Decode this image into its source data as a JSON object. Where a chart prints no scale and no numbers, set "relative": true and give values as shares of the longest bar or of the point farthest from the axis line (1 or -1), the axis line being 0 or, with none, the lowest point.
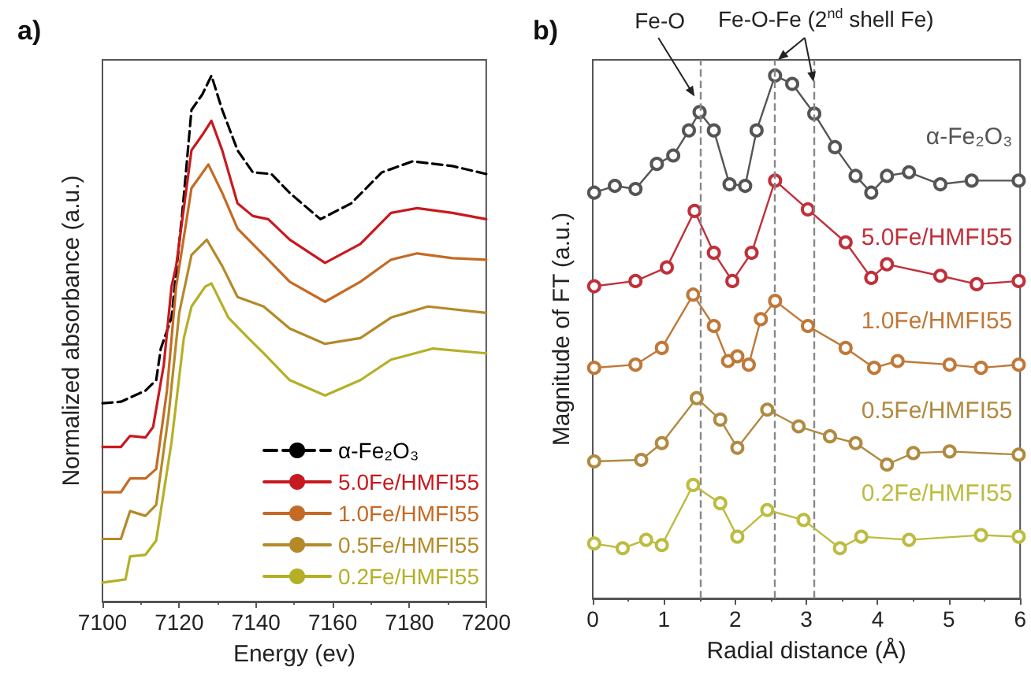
{
  "chart_data": [
    {
      "type": "line",
      "title": "a)",
      "xlabel": "Energy (ev)",
      "ylabel": "Normalized absorbance (a.u.)",
      "relative": true,
      "xlim": [
        7100,
        7200
      ],
      "xticks": [
        7100,
        7120,
        7140,
        7160,
        7180,
        7200
      ],
      "grid": false,
      "legend": "bottom right",
      "marker": "none",
      "series": [
        {
          "name": "α-Fe₂O₃",
          "color": "#000000",
          "line_style": "dashed",
          "x": [
            7100,
            7104.8,
            7111.2,
            7114,
            7115.2,
            7118,
            7120.8,
            7123.2,
            7126,
            7128.4,
            7131.2,
            7135.2,
            7139.2,
            7144,
            7148.8,
            7156.8,
            7164.8,
            7172.8,
            7180.8,
            7191.2,
            7200
          ],
          "values": [
            0.377,
            0.38,
            0.401,
            0.421,
            0.481,
            0.54,
            0.739,
            0.935,
            0.964,
            1.0,
            0.935,
            0.858,
            0.816,
            0.813,
            0.777,
            0.727,
            0.757,
            0.816,
            0.837,
            0.828,
            0.813
          ]
        },
        {
          "name": "5.0Fe/HMFI55",
          "color": "#c8191e",
          "x": [
            7100,
            7104.8,
            7107.2,
            7111.2,
            7113.2,
            7116,
            7118,
            7119.2,
            7123.2,
            7126,
            7128.4,
            7131.2,
            7135.2,
            7139.2,
            7143.2,
            7148.8,
            7158,
            7167.2,
            7175.2,
            7182,
            7191.2,
            7200
          ],
          "values": [
            0.294,
            0.294,
            0.315,
            0.312,
            0.332,
            0.451,
            0.599,
            0.638,
            0.858,
            0.887,
            0.914,
            0.858,
            0.757,
            0.733,
            0.727,
            0.688,
            0.644,
            0.68,
            0.739,
            0.748,
            0.739,
            0.727
          ]
        },
        {
          "name": "1.0Fe/HMFI55",
          "color": "#c46a24",
          "x": [
            7100,
            7104.8,
            7107.2,
            7111.2,
            7114,
            7116.8,
            7119.2,
            7123.2,
            7127.6,
            7131.2,
            7135.2,
            7142,
            7148.8,
            7158,
            7167.2,
            7175.2,
            7182,
            7191.2,
            7200
          ],
          "values": [
            0.208,
            0.208,
            0.234,
            0.234,
            0.252,
            0.401,
            0.599,
            0.786,
            0.831,
            0.777,
            0.709,
            0.659,
            0.608,
            0.57,
            0.608,
            0.65,
            0.662,
            0.653,
            0.65
          ]
        },
        {
          "name": "0.5Fe/HMFI55",
          "color": "#b48a28",
          "x": [
            7100,
            7104.8,
            7107.2,
            7111.2,
            7114,
            7117.2,
            7120,
            7123.2,
            7127.2,
            7131.2,
            7135.2,
            7142,
            7148.8,
            7158,
            7167.2,
            7175.2,
            7184.8,
            7200
          ],
          "values": [
            0.119,
            0.119,
            0.172,
            0.163,
            0.184,
            0.353,
            0.549,
            0.659,
            0.688,
            0.638,
            0.579,
            0.561,
            0.519,
            0.49,
            0.501,
            0.54,
            0.561,
            0.549
          ]
        },
        {
          "name": "0.2Fe/HMFI55",
          "color": "#b4b026",
          "x": [
            7100,
            7106,
            7107.2,
            7111.2,
            7114,
            7118,
            7121.2,
            7123.2,
            7126.8,
            7128.4,
            7132.8,
            7138,
            7142,
            7148.8,
            7158,
            7167.2,
            7175.2,
            7186,
            7200
          ],
          "values": [
            0.036,
            0.042,
            0.086,
            0.089,
            0.116,
            0.303,
            0.501,
            0.561,
            0.599,
            0.605,
            0.54,
            0.501,
            0.472,
            0.421,
            0.392,
            0.421,
            0.46,
            0.481,
            0.472
          ]
        }
      ]
    },
    {
      "type": "line",
      "title": "b)",
      "xlabel": "Radial distance (Å)",
      "ylabel": "Magnitude of FT (a.u.)",
      "relative": true,
      "xlim": [
        0,
        6
      ],
      "xticks": [
        0,
        1,
        2,
        3,
        4,
        5,
        6
      ],
      "grid": false,
      "legend": false,
      "marker": "circle",
      "ref_lines": [
        {
          "axis": "x",
          "value": 1.5,
          "color": "#888888",
          "line_style": "dashed"
        },
        {
          "axis": "x",
          "value": 2.55,
          "color": "#888888",
          "line_style": "dashed"
        },
        {
          "axis": "x",
          "value": 3.1,
          "color": "#888888",
          "line_style": "dashed"
        }
      ],
      "annotations": [
        {
          "text": "Fe-O",
          "x": 1.43,
          "y": 0.96
        },
        {
          "text": "Fe-O-Fe (2$^{nd}$ shell Fe)",
          "x": 2.6,
          "y": 1.03
        }
      ],
      "series": [
        {
          "name": "α-Fe₂O₃",
          "color": "#555555",
          "x": [
            0.02,
            0.31,
            0.6,
            0.9,
            1.13,
            1.35,
            1.5,
            1.7,
            1.92,
            2.14,
            2.3,
            2.56,
            2.8,
            3.11,
            3.4,
            3.69,
            3.91,
            4.13,
            4.44,
            4.88,
            5.32,
            5.98
          ],
          "values": [
            0.776,
            0.789,
            0.783,
            0.831,
            0.847,
            0.895,
            0.93,
            0.895,
            0.792,
            0.789,
            0.895,
            1.0,
            0.984,
            0.927,
            0.863,
            0.808,
            0.776,
            0.808,
            0.815,
            0.792,
            0.799,
            0.799
          ]
        },
        {
          "name": "5.0Fe/HMFI55",
          "color": "#c0303a",
          "x": [
            0.02,
            0.6,
            1.04,
            1.43,
            1.7,
            1.96,
            2.23,
            2.56,
            3.02,
            3.55,
            3.91,
            4.13,
            4.88,
            5.39,
            5.98
          ],
          "values": [
            0.597,
            0.607,
            0.633,
            0.741,
            0.661,
            0.607,
            0.661,
            0.799,
            0.744,
            0.681,
            0.613,
            0.639,
            0.617,
            0.601,
            0.607
          ]
        },
        {
          "name": "1.0Fe/HMFI55",
          "color": "#c07838",
          "x": [
            0.02,
            0.6,
            0.97,
            1.41,
            1.7,
            1.9,
            2.03,
            2.19,
            2.36,
            2.56,
            3.02,
            3.55,
            3.95,
            4.28,
            5.01,
            5.45,
            5.98
          ],
          "values": [
            0.441,
            0.447,
            0.479,
            0.581,
            0.521,
            0.454,
            0.463,
            0.447,
            0.534,
            0.569,
            0.521,
            0.479,
            0.441,
            0.454,
            0.447,
            0.441,
            0.447
          ]
        },
        {
          "name": "0.5Fe/HMFI55",
          "color": "#b08a40",
          "x": [
            0.02,
            0.68,
            0.97,
            1.46,
            1.79,
            2.03,
            2.45,
            2.89,
            3.33,
            3.69,
            4.13,
            4.5,
            5.01,
            5.98
          ],
          "values": [
            0.262,
            0.265,
            0.297,
            0.383,
            0.342,
            0.288,
            0.361,
            0.329,
            0.31,
            0.297,
            0.256,
            0.278,
            0.281,
            0.275
          ]
        },
        {
          "name": "0.2Fe/HMFI55",
          "color": "#bcbc40",
          "x": [
            0.02,
            0.42,
            0.75,
            0.97,
            1.41,
            1.79,
            2.03,
            2.45,
            2.96,
            3.47,
            3.77,
            4.44,
            5.45,
            5.98
          ],
          "values": [
            0.105,
            0.096,
            0.112,
            0.102,
            0.217,
            0.182,
            0.118,
            0.169,
            0.15,
            0.096,
            0.118,
            0.112,
            0.121,
            0.118
          ]
        }
      ]
    }
  ]
}
